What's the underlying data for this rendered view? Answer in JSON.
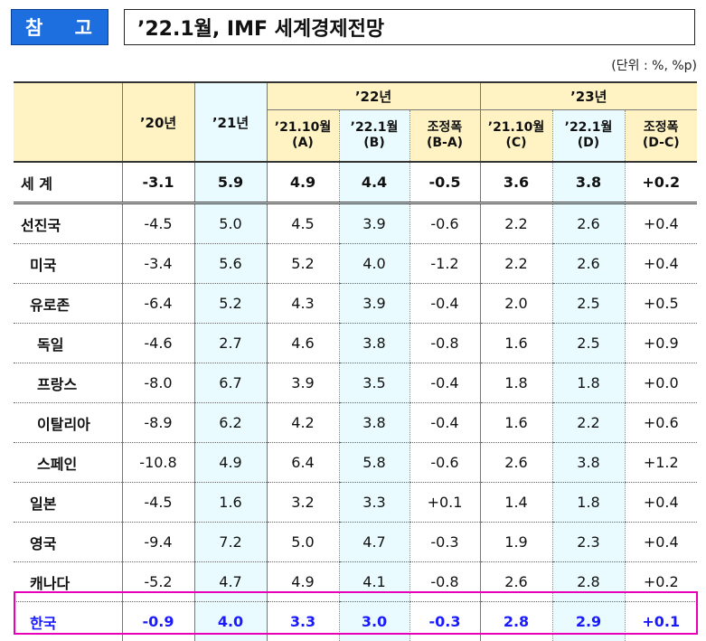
{
  "header": {
    "badge": "참 고",
    "title": "’22.1월, IMF 세계경제전망",
    "unit": "(단위 : %, %p)"
  },
  "columns": {
    "y20": "’20년",
    "y21": "’21년",
    "y22": "’22년",
    "y23": "’23년",
    "sub22": [
      {
        "line1": "’21.10월",
        "line2": "(A)"
      },
      {
        "line1": "’22.1월",
        "line2": "(B)"
      },
      {
        "line1": "조정폭",
        "line2": "(B-A)"
      }
    ],
    "sub23": [
      {
        "line1": "’21.10월",
        "line2": "(C)"
      },
      {
        "line1": "’22.1월",
        "line2": "(D)"
      },
      {
        "line1": "조정폭",
        "line2": "(D-C)"
      }
    ]
  },
  "rows": [
    {
      "label": "세  계",
      "values": [
        "-3.1",
        "5.9",
        "4.9",
        "4.4",
        "-0.5",
        "3.6",
        "3.8",
        "+0.2"
      ]
    },
    {
      "label": "선진국",
      "values": [
        "-4.5",
        "5.0",
        "4.5",
        "3.9",
        "-0.6",
        "2.2",
        "2.6",
        "+0.4"
      ]
    },
    {
      "label": "미국",
      "values": [
        "-3.4",
        "5.6",
        "5.2",
        "4.0",
        "-1.2",
        "2.2",
        "2.6",
        "+0.4"
      ]
    },
    {
      "label": "유로존",
      "values": [
        "-6.4",
        "5.2",
        "4.3",
        "3.9",
        "-0.4",
        "2.0",
        "2.5",
        "+0.5"
      ]
    },
    {
      "label": "독일",
      "values": [
        "-4.6",
        "2.7",
        "4.6",
        "3.8",
        "-0.8",
        "1.6",
        "2.5",
        "+0.9"
      ]
    },
    {
      "label": "프랑스",
      "values": [
        "-8.0",
        "6.7",
        "3.9",
        "3.5",
        "-0.4",
        "1.8",
        "1.8",
        "+0.0"
      ]
    },
    {
      "label": "이탈리아",
      "values": [
        "-8.9",
        "6.2",
        "4.2",
        "3.8",
        "-0.4",
        "1.6",
        "2.2",
        "+0.6"
      ]
    },
    {
      "label": "스페인",
      "values": [
        "-10.8",
        "4.9",
        "6.4",
        "5.8",
        "-0.6",
        "2.6",
        "3.8",
        "+1.2"
      ]
    },
    {
      "label": "일본",
      "values": [
        "-4.5",
        "1.6",
        "3.2",
        "3.3",
        "+0.1",
        "1.4",
        "1.8",
        "+0.4"
      ]
    },
    {
      "label": "영국",
      "values": [
        "-9.4",
        "7.2",
        "5.0",
        "4.7",
        "-0.3",
        "1.9",
        "2.3",
        "+0.4"
      ]
    },
    {
      "label": "캐나다",
      "values": [
        "-5.2",
        "4.7",
        "4.9",
        "4.1",
        "-0.8",
        "2.6",
        "2.8",
        "+0.2"
      ]
    },
    {
      "label": "한국",
      "values": [
        "-0.9",
        "4.0",
        "3.3",
        "3.0",
        "-0.3",
        "2.8",
        "2.9",
        "+0.1"
      ]
    }
  ],
  "colors": {
    "badge": "#1d6fe0",
    "korea_highlight": "#e800b8",
    "korea_text": "#1a1aff",
    "header_bg": "#fff3c4",
    "col_highlight": "#e9fbff"
  }
}
